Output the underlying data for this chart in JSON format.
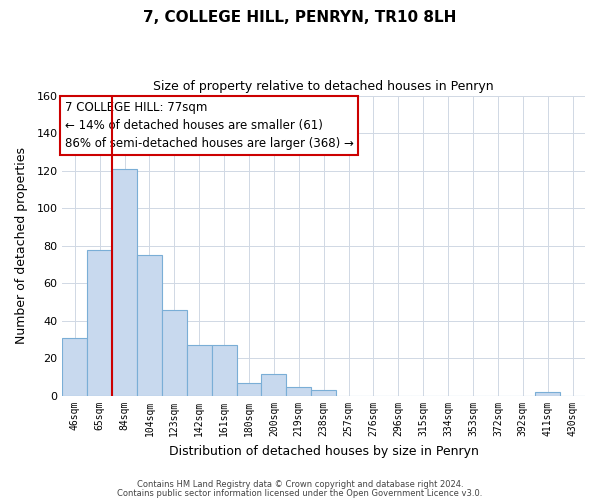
{
  "title": "7, COLLEGE HILL, PENRYN, TR10 8LH",
  "subtitle": "Size of property relative to detached houses in Penryn",
  "xlabel": "Distribution of detached houses by size in Penryn",
  "ylabel": "Number of detached properties",
  "footer_line1": "Contains HM Land Registry data © Crown copyright and database right 2024.",
  "footer_line2": "Contains public sector information licensed under the Open Government Licence v3.0.",
  "x_labels": [
    "46sqm",
    "65sqm",
    "84sqm",
    "104sqm",
    "123sqm",
    "142sqm",
    "161sqm",
    "180sqm",
    "200sqm",
    "219sqm",
    "238sqm",
    "257sqm",
    "276sqm",
    "296sqm",
    "315sqm",
    "334sqm",
    "353sqm",
    "372sqm",
    "392sqm",
    "411sqm",
    "430sqm"
  ],
  "bar_values": [
    31,
    78,
    121,
    75,
    46,
    27,
    27,
    7,
    12,
    5,
    3,
    0,
    0,
    0,
    0,
    0,
    0,
    0,
    0,
    2,
    0
  ],
  "bar_color": "#c8d9ee",
  "bar_edge_color": "#7aaed6",
  "red_line_x": 2,
  "ylim": [
    0,
    160
  ],
  "yticks": [
    0,
    20,
    40,
    60,
    80,
    100,
    120,
    140,
    160
  ],
  "annotation_title": "7 COLLEGE HILL: 77sqm",
  "annotation_line1": "← 14% of detached houses are smaller (61)",
  "annotation_line2": "86% of semi-detached houses are larger (368) →",
  "annotation_box_color": "#ffffff",
  "annotation_border_color": "#cc0000",
  "grid_color": "#d0d8e4",
  "background_color": "#ffffff",
  "title_fontsize": 11,
  "subtitle_fontsize": 9
}
